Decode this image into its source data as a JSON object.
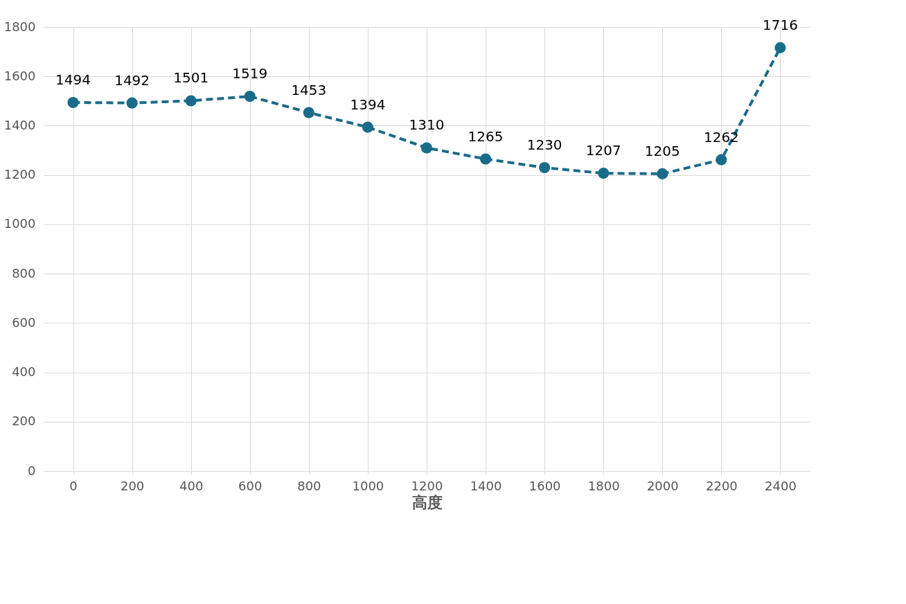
{
  "chart_data": {
    "type": "line",
    "xlabel": "高度",
    "categories": [
      "0",
      "200",
      "400",
      "600",
      "800",
      "1000",
      "1200",
      "1400",
      "1600",
      "1800",
      "2000",
      "2200",
      "2400"
    ],
    "series": [
      {
        "color": "#1a6b8a",
        "values": [
          1494,
          1492,
          1501,
          1519,
          1453,
          1394,
          1310,
          1265,
          1230,
          1207,
          1205,
          1262,
          1716
        ]
      }
    ],
    "ylim": [
      0,
      1800
    ],
    "yticks": [
      0,
      200,
      400,
      600,
      800,
      1000,
      1200,
      1400,
      1600,
      1800
    ],
    "grid": true,
    "legend": false,
    "marker": "circle",
    "line_style": "dashed",
    "data_labels": true
  }
}
